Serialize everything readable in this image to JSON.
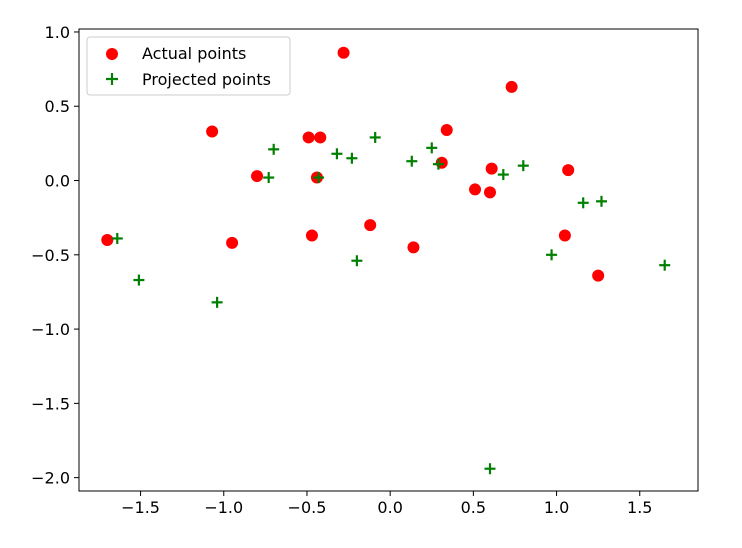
{
  "chart_data": {
    "type": "scatter",
    "title": "",
    "xlabel": "",
    "ylabel": "",
    "xlim": [
      -1.87,
      1.85
    ],
    "ylim": [
      -2.09,
      1.02
    ],
    "grid": false,
    "legend_position": "top-left",
    "x_ticks": [
      {
        "value": -1.5,
        "label": "−1.5"
      },
      {
        "value": -1.0,
        "label": "−1.0"
      },
      {
        "value": -0.5,
        "label": "−0.5"
      },
      {
        "value": 0.0,
        "label": "0.0"
      },
      {
        "value": 0.5,
        "label": "0.5"
      },
      {
        "value": 1.0,
        "label": "1.0"
      },
      {
        "value": 1.5,
        "label": "1.5"
      }
    ],
    "y_ticks": [
      {
        "value": 1.0,
        "label": "1.0"
      },
      {
        "value": 0.5,
        "label": "0.5"
      },
      {
        "value": 0.0,
        "label": "0.0"
      },
      {
        "value": -0.5,
        "label": "−0.5"
      },
      {
        "value": -1.0,
        "label": "−1.0"
      },
      {
        "value": -1.5,
        "label": "−1.5"
      },
      {
        "value": -2.0,
        "label": "−2.0"
      }
    ],
    "series": [
      {
        "name": "Actual points",
        "marker": "circle",
        "color": "#ff0000",
        "points": [
          [
            -1.7,
            -0.4
          ],
          [
            -1.07,
            0.33
          ],
          [
            -0.95,
            -0.42
          ],
          [
            -0.8,
            0.03
          ],
          [
            -0.49,
            0.29
          ],
          [
            -0.47,
            -0.37
          ],
          [
            -0.44,
            0.02
          ],
          [
            -0.42,
            0.29
          ],
          [
            -0.28,
            0.86
          ],
          [
            -0.12,
            -0.3
          ],
          [
            0.14,
            -0.45
          ],
          [
            0.31,
            0.12
          ],
          [
            0.34,
            0.34
          ],
          [
            0.51,
            -0.06
          ],
          [
            0.6,
            -0.08
          ],
          [
            0.61,
            0.08
          ],
          [
            0.73,
            0.63
          ],
          [
            1.05,
            -0.37
          ],
          [
            1.07,
            0.07
          ],
          [
            1.25,
            -0.64
          ]
        ]
      },
      {
        "name": "Projected points",
        "marker": "plus",
        "color": "#007f00",
        "points": [
          [
            -1.64,
            -0.39
          ],
          [
            -1.51,
            -0.67
          ],
          [
            -1.04,
            -0.82
          ],
          [
            -0.73,
            0.02
          ],
          [
            -0.7,
            0.21
          ],
          [
            -0.43,
            0.02
          ],
          [
            -0.32,
            0.18
          ],
          [
            -0.23,
            0.15
          ],
          [
            -0.2,
            -0.54
          ],
          [
            -0.09,
            0.29
          ],
          [
            0.13,
            0.13
          ],
          [
            0.25,
            0.22
          ],
          [
            0.29,
            0.11
          ],
          [
            0.6,
            -1.94
          ],
          [
            0.68,
            0.04
          ],
          [
            0.8,
            0.1
          ],
          [
            0.97,
            -0.5
          ],
          [
            1.16,
            -0.15
          ],
          [
            1.27,
            -0.14
          ],
          [
            1.65,
            -0.57
          ]
        ]
      }
    ]
  }
}
